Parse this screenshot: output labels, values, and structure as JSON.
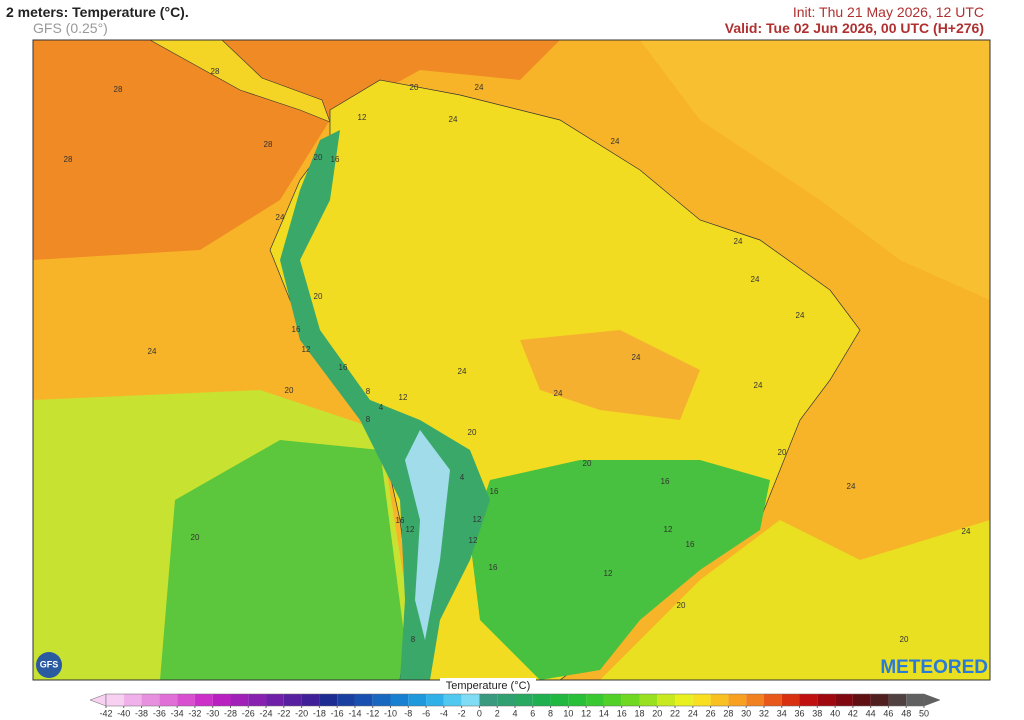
{
  "header": {
    "title": "2 meters: Temperature (°C).",
    "model": "GFS (0.25°)",
    "init": "Init: Thu 21 May 2026, 12 UTC",
    "valid": "Valid: Tue 02 Jun 2026, 00 UTC (H+276)"
  },
  "map": {
    "contour_labels": [
      28,
      28,
      28,
      28,
      24,
      20,
      16,
      12,
      24,
      20,
      16,
      8,
      12,
      4,
      20,
      24,
      24,
      24,
      24,
      20,
      16,
      16,
      12,
      12,
      16,
      12,
      16,
      12,
      12,
      16,
      20,
      20,
      20,
      24,
      24,
      20,
      24,
      24,
      24,
      24,
      24,
      20,
      24,
      8,
      20,
      16,
      12,
      4,
      8
    ],
    "logo_left": "GFS",
    "logo_right": "METEORED"
  },
  "colorbar": {
    "title": "Temperature (°C)",
    "ticks": [
      -42,
      -40,
      -38,
      -36,
      -34,
      -32,
      -30,
      -28,
      -26,
      -24,
      -22,
      -20,
      -18,
      -16,
      -14,
      -12,
      -10,
      -8,
      -6,
      -4,
      -2,
      0,
      2,
      4,
      6,
      8,
      10,
      12,
      14,
      16,
      18,
      20,
      22,
      24,
      26,
      28,
      30,
      32,
      34,
      36,
      38,
      40,
      42,
      44,
      46,
      48,
      50
    ],
    "colors": [
      "#f7d0f2",
      "#f0b0ea",
      "#e890e0",
      "#e070d8",
      "#d850d0",
      "#cc30c8",
      "#b820c0",
      "#a020b8",
      "#8820b0",
      "#7020a8",
      "#5820a0",
      "#402098",
      "#1c2c90",
      "#1840a0",
      "#1850b0",
      "#1868c0",
      "#1880d0",
      "#2098dc",
      "#30b0e8",
      "#50c8f0",
      "#80dcf4",
      "#3a9a80",
      "#30a070",
      "#28a860",
      "#20b050",
      "#20b840",
      "#28c038",
      "#38c830",
      "#50d028",
      "#70d820",
      "#98e020",
      "#c8e820",
      "#e8f020",
      "#f8e020",
      "#f8c020",
      "#f8a020",
      "#f08020",
      "#e85818",
      "#d83010",
      "#c01010",
      "#a00810",
      "#800810",
      "#601010",
      "#502020",
      "#504040",
      "#606060"
    ]
  }
}
